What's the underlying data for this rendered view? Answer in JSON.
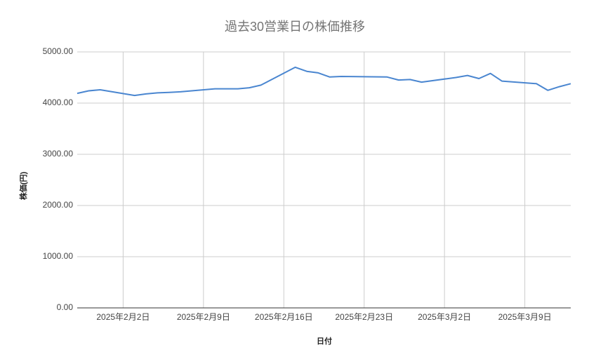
{
  "chart_data": {
    "type": "line",
    "title": "過去30営業日の株価推移",
    "x_label": "日付",
    "y_label": "株価(円)",
    "x": [
      "2025-01-29",
      "2025-01-30",
      "2025-01-31",
      "2025-02-03",
      "2025-02-04",
      "2025-02-05",
      "2025-02-06",
      "2025-02-07",
      "2025-02-10",
      "2025-02-11",
      "2025-02-12",
      "2025-02-13",
      "2025-02-14",
      "2025-02-17",
      "2025-02-18",
      "2025-02-19",
      "2025-02-20",
      "2025-02-21",
      "2025-02-25",
      "2025-02-26",
      "2025-02-27",
      "2025-02-28",
      "2025-03-03",
      "2025-03-04",
      "2025-03-05",
      "2025-03-06",
      "2025-03-07",
      "2025-03-10",
      "2025-03-11",
      "2025-03-12",
      "2025-03-13"
    ],
    "series": [
      {
        "name": "株価",
        "color": "#4a86d0",
        "values": [
          4190,
          4240,
          4260,
          4150,
          4180,
          4200,
          4210,
          4220,
          4280,
          4280,
          4280,
          4300,
          4350,
          4700,
          4620,
          4590,
          4510,
          4520,
          4510,
          4450,
          4460,
          4410,
          4500,
          4540,
          4480,
          4580,
          4430,
          4380,
          4250,
          4320,
          4380
        ]
      }
    ],
    "xlim": [
      "2025-01-29",
      "2025-03-13"
    ],
    "xticks": [
      {
        "value": "2025-02-02",
        "label": "2025年2月2日"
      },
      {
        "value": "2025-02-09",
        "label": "2025年2月9日"
      },
      {
        "value": "2025-02-16",
        "label": "2025年2月16日"
      },
      {
        "value": "2025-02-23",
        "label": "2025年2月23日"
      },
      {
        "value": "2025-03-02",
        "label": "2025年3月2日"
      },
      {
        "value": "2025-03-09",
        "label": "2025年3月9日"
      }
    ],
    "ylim": [
      0,
      5000
    ],
    "yticks": [
      {
        "value": 0,
        "label": "0.00"
      },
      {
        "value": 1000,
        "label": "1000.00"
      },
      {
        "value": 2000,
        "label": "2000.00"
      },
      {
        "value": 3000,
        "label": "3000.00"
      },
      {
        "value": 4000,
        "label": "4000.00"
      },
      {
        "value": 5000,
        "label": "5000.00"
      }
    ],
    "grid": true
  }
}
